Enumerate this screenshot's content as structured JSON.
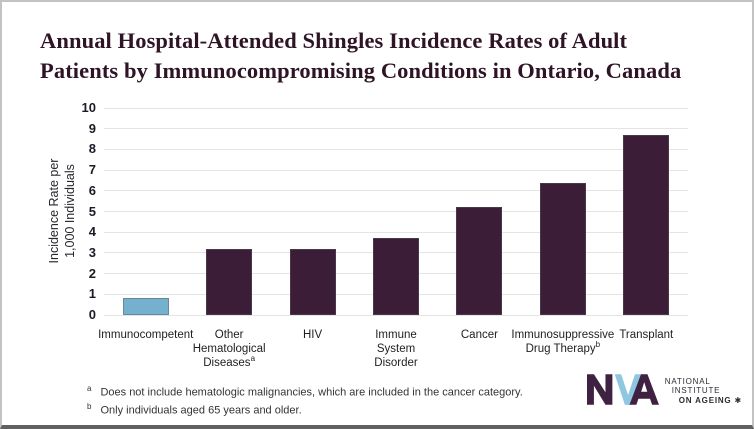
{
  "title": {
    "line1": "Annual Hospital-Attended Shingles Incidence Rates of Adult",
    "line2": "Patients by Immunocompromising Conditions in Ontario, Canada"
  },
  "chart_data": {
    "type": "bar",
    "title": "Annual Hospital-Attended Shingles Incidence Rates of Adult Patients by Immunocompromising Conditions in Ontario, Canada",
    "ylabel_lines": [
      "Incidence Rate per",
      "1,000 Individuals"
    ],
    "xlabel": "",
    "ylim": [
      0,
      10
    ],
    "ytick_step": 1,
    "grid": true,
    "legend": "none",
    "categories": [
      {
        "label": "Immunocompetent",
        "lines": [
          "Immunocompetent"
        ],
        "sup": ""
      },
      {
        "label": "Other Hematological Diseases",
        "lines": [
          "Other",
          "Hematological",
          "Diseases"
        ],
        "sup": "a"
      },
      {
        "label": "HIV",
        "lines": [
          "HIV"
        ],
        "sup": ""
      },
      {
        "label": "Immune System Disorder",
        "lines": [
          "Immune",
          "System",
          "Disorder"
        ],
        "sup": ""
      },
      {
        "label": "Cancer",
        "lines": [
          "Cancer"
        ],
        "sup": ""
      },
      {
        "label": "Immunosuppressive Drug Therapy",
        "lines": [
          "Immunosuppressive",
          "Drug Therapy"
        ],
        "sup": "b"
      },
      {
        "label": "Transplant",
        "lines": [
          "Transplant"
        ],
        "sup": ""
      }
    ],
    "values": [
      0.8,
      3.2,
      3.2,
      3.7,
      5.2,
      6.4,
      8.7
    ],
    "bar_color": "#3b1d37",
    "highlight_color": "#76b0cf",
    "highlight_index": 0,
    "grid_color": "#e4e4e7"
  },
  "footnotes": [
    {
      "marker": "a",
      "text": "Does not include hematologic malignancies, which are included in the cancer category."
    },
    {
      "marker": "b",
      "text": "Only individuals aged 65 years and older."
    }
  ],
  "logo": {
    "name": "National Institute on Ageing",
    "text_lines": [
      "NATIONAL",
      "INSTITUTE",
      "ON AGEING"
    ],
    "star": "✱",
    "purple": "#3f2142",
    "blue": "#8ec7e0"
  }
}
